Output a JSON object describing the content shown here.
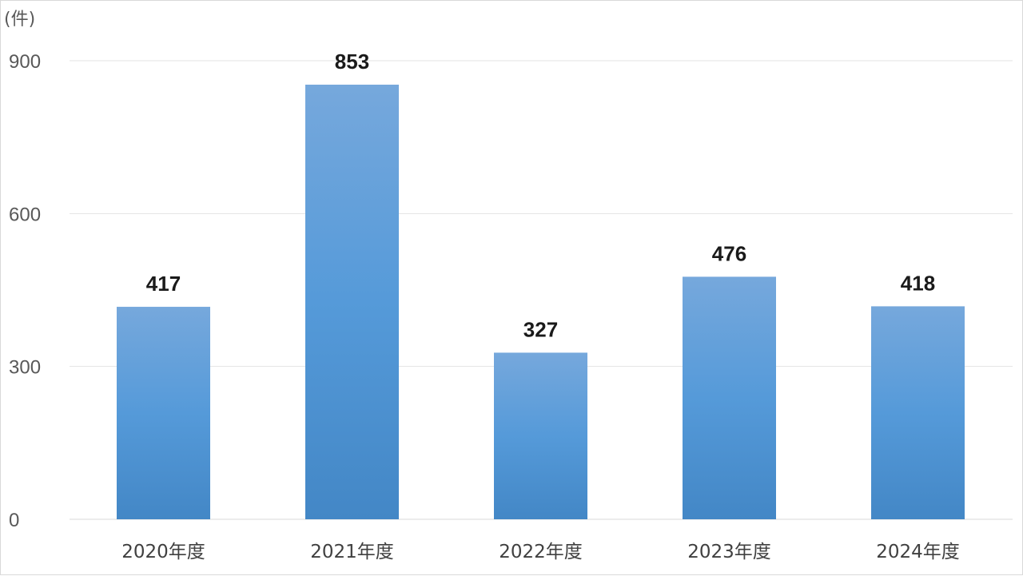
{
  "chart_data": {
    "type": "bar",
    "unit_label": "(件)",
    "categories": [
      "2020年度",
      "2021年度",
      "2022年度",
      "2023年度",
      "2024年度"
    ],
    "values": [
      417,
      853,
      327,
      476,
      418
    ],
    "data_labels": [
      "417",
      "853",
      "327",
      "476",
      "418"
    ],
    "ylim": [
      0,
      900
    ],
    "yticks": [
      0,
      300,
      600,
      900
    ],
    "ytick_labels": [
      "0",
      "300",
      "600",
      "900"
    ],
    "grid": true,
    "legend": "none",
    "colors": {
      "bar_top": "#76a8dc",
      "bar_mid": "#559ad9",
      "bar_bottom": "#4387c6"
    }
  }
}
